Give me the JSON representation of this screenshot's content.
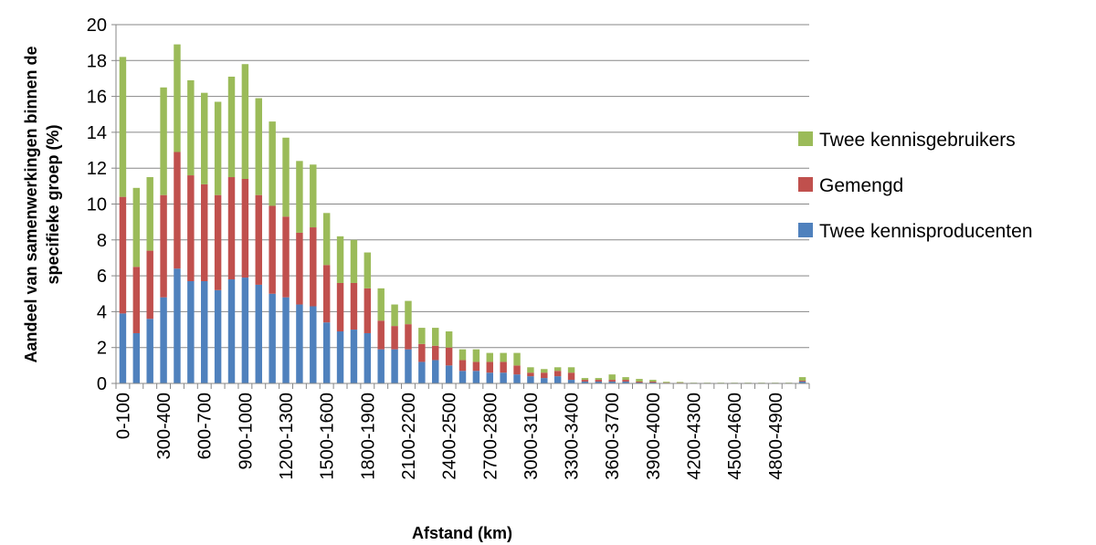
{
  "chart_data": {
    "type": "bar",
    "stacked": true,
    "xlabel": "Afstand (km)",
    "ylabel": [
      "Aandeel van samenwerkingen binnen de",
      "specifieke groep (%)"
    ],
    "ylim": [
      0,
      20
    ],
    "yticks": [
      0,
      2,
      4,
      6,
      8,
      10,
      12,
      14,
      16,
      18,
      20
    ],
    "grid": "horizontal",
    "legend_position": "right",
    "categories": [
      "0-100",
      "100-200",
      "200-300",
      "300-400",
      "400-500",
      "500-600",
      "600-700",
      "700-800",
      "800-900",
      "900-1000",
      "1000-1100",
      "1100-1200",
      "1200-1300",
      "1300-1400",
      "1400-1500",
      "1500-1600",
      "1600-1700",
      "1700-1800",
      "1800-1900",
      "1900-2000",
      "2000-2100",
      "2100-2200",
      "2200-2300",
      "2300-2400",
      "2400-2500",
      "2500-2600",
      "2600-2700",
      "2700-2800",
      "2800-2900",
      "2900-3000",
      "3000-3100",
      "3100-3200",
      "3200-3300",
      "3300-3400",
      "3400-3500",
      "3500-3600",
      "3600-3700",
      "3700-3800",
      "3800-3900",
      "3900-4000",
      "4000-4100",
      "4100-4200",
      "4200-4300",
      "4300-4400",
      "4400-4500",
      "4500-4600",
      "4600-4700",
      "4700-4800",
      "4800-4900",
      "4900-5000",
      ">5000"
    ],
    "labeled_categories": [
      "0-100",
      "300-400",
      "600-700",
      "900-1000",
      "1200-1300",
      "1500-1600",
      "1800-1900",
      "2100-2200",
      "2400-2500",
      "2700-2800",
      "3000-3100",
      "3300-3400",
      "3600-3700",
      "3900-4000",
      "4200-4300",
      "4500-4600",
      "4800-4900"
    ],
    "series": [
      {
        "name": "Twee kennisproducenten",
        "color": "#4f81bd",
        "values": [
          3.9,
          2.8,
          3.6,
          4.8,
          6.4,
          5.7,
          5.7,
          5.2,
          5.8,
          5.9,
          5.5,
          5.0,
          4.8,
          4.4,
          4.3,
          3.4,
          2.9,
          3.0,
          2.8,
          1.9,
          1.9,
          1.9,
          1.2,
          1.3,
          1.0,
          0.7,
          0.7,
          0.6,
          0.6,
          0.5,
          0.4,
          0.3,
          0.4,
          0.2,
          0.1,
          0.1,
          0.1,
          0.1,
          0.05,
          0.05,
          0.02,
          0.02,
          0.01,
          0.01,
          0.01,
          0.01,
          0.01,
          0.01,
          0.01,
          0.01,
          0.1
        ]
      },
      {
        "name": "Gemengd",
        "color": "#c0504d",
        "values": [
          6.5,
          3.7,
          3.8,
          5.7,
          6.5,
          5.9,
          5.4,
          5.3,
          5.7,
          5.5,
          5.0,
          4.9,
          4.5,
          4.0,
          4.4,
          3.2,
          2.7,
          2.6,
          2.5,
          1.6,
          1.3,
          1.4,
          1.0,
          0.8,
          1.0,
          0.6,
          0.5,
          0.6,
          0.6,
          0.5,
          0.2,
          0.3,
          0.3,
          0.4,
          0.1,
          0.1,
          0.1,
          0.1,
          0.05,
          0.05,
          0.02,
          0.02,
          0.01,
          0.01,
          0.01,
          0.01,
          0.01,
          0.01,
          0.01,
          0.01,
          0.05
        ]
      },
      {
        "name": "Twee kennisgebruikers",
        "color": "#9bbb59",
        "values": [
          7.8,
          4.4,
          4.1,
          6.0,
          6.0,
          5.3,
          5.1,
          5.2,
          5.6,
          6.4,
          5.4,
          4.7,
          4.4,
          4.0,
          3.5,
          2.9,
          2.6,
          2.4,
          2.0,
          1.8,
          1.2,
          1.3,
          0.9,
          1.0,
          0.9,
          0.6,
          0.7,
          0.5,
          0.5,
          0.7,
          0.3,
          0.2,
          0.2,
          0.3,
          0.1,
          0.1,
          0.3,
          0.15,
          0.15,
          0.1,
          0.05,
          0.04,
          0.02,
          0.02,
          0.02,
          0.02,
          0.02,
          0.02,
          0.02,
          0.02,
          0.2
        ]
      }
    ]
  }
}
